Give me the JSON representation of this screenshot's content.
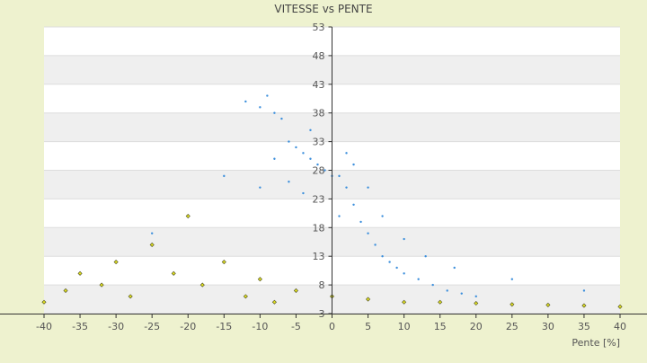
{
  "chart_data": {
    "type": "scatter",
    "title": "VITESSE vs PENTE",
    "xlabel": "Pente [%]",
    "ylabel": "",
    "xlim": [
      -40,
      40
    ],
    "ylim": [
      3,
      53
    ],
    "x_ticks": [
      "-40",
      "-35",
      "-30",
      "-25",
      "-20",
      "-15",
      "-10",
      "-5",
      "0",
      "5",
      "10",
      "15",
      "20",
      "25",
      "30",
      "35",
      "40"
    ],
    "y_ticks": [
      "3",
      "8",
      "13",
      "18",
      "23",
      "28",
      "33",
      "38",
      "43",
      "48",
      "53"
    ],
    "y_tick_values": [
      3,
      8,
      13,
      18,
      23,
      28,
      33,
      38,
      43,
      48,
      53
    ],
    "grid": true,
    "legend": "none",
    "colors": {
      "background": "#eef2cf",
      "plot_band_light": "#ffffff",
      "plot_band_dark": "#efefef",
      "series_blue": "#3c8fdc",
      "series_yellow": "#e0e020",
      "series_yellow_outline": "#4a4a20",
      "text": "#555555",
      "title": "#444444",
      "axis": "#333333"
    },
    "series": [
      {
        "color": "#3c8fdc",
        "marker": "small-dot",
        "points": [
          [
            -12.0,
            40.0
          ],
          [
            -10.0,
            39.0
          ],
          [
            -9.0,
            41.0
          ],
          [
            -8.0,
            38.0
          ],
          [
            -7.0,
            37.0
          ],
          [
            -6.0,
            33.0
          ],
          [
            -5.0,
            32.0
          ],
          [
            -4.0,
            31.0
          ],
          [
            -3.0,
            30.0
          ],
          [
            -2.0,
            29.0
          ],
          [
            -1.0,
            28.0
          ],
          [
            0.0,
            27.0
          ],
          [
            1.0,
            27.0
          ],
          [
            2.0,
            25.0
          ],
          [
            3.0,
            22.0
          ],
          [
            4.0,
            19.0
          ],
          [
            5.0,
            17.0
          ],
          [
            6.0,
            15.0
          ],
          [
            7.0,
            13.0
          ],
          [
            8.0,
            12.0
          ],
          [
            9.0,
            11.0
          ],
          [
            10.0,
            10.0
          ],
          [
            12.0,
            9.0
          ],
          [
            14.0,
            8.0
          ],
          [
            16.0,
            7.0
          ],
          [
            18.0,
            6.5
          ],
          [
            20.0,
            6.0
          ],
          [
            -15.0,
            27.0
          ],
          [
            -20.0,
            20.0
          ],
          [
            -25.0,
            17.0
          ],
          [
            -10.0,
            25.0
          ],
          [
            -8.0,
            30.0
          ],
          [
            -6.0,
            26.0
          ],
          [
            -4.0,
            24.0
          ],
          [
            -3.0,
            35.0
          ],
          [
            1.0,
            20.0
          ],
          [
            2.0,
            31.0
          ],
          [
            3.0,
            29.0
          ],
          [
            5.0,
            25.0
          ],
          [
            7.0,
            20.0
          ],
          [
            10.0,
            16.0
          ],
          [
            13.0,
            13.0
          ],
          [
            17.0,
            11.0
          ],
          [
            25.0,
            9.0
          ],
          [
            35.0,
            7.0
          ]
        ]
      },
      {
        "color": "#e0e020",
        "marker": "small-diamond",
        "points": [
          [
            -40.0,
            5.0
          ],
          [
            -37.0,
            7.0
          ],
          [
            -35.0,
            10.0
          ],
          [
            -32.0,
            8.0
          ],
          [
            -30.0,
            12.0
          ],
          [
            -28.0,
            6.0
          ],
          [
            -25.0,
            15.0
          ],
          [
            -22.0,
            10.0
          ],
          [
            -20.0,
            20.0
          ],
          [
            -18.0,
            8.0
          ],
          [
            -15.0,
            12.0
          ],
          [
            -12.0,
            6.0
          ],
          [
            -10.0,
            9.0
          ],
          [
            -8.0,
            5.0
          ],
          [
            -5.0,
            7.0
          ],
          [
            0.0,
            6.0
          ],
          [
            5.0,
            5.5
          ],
          [
            10.0,
            5.0
          ],
          [
            15.0,
            5.0
          ],
          [
            20.0,
            4.8
          ],
          [
            25.0,
            4.6
          ],
          [
            30.0,
            4.5
          ],
          [
            35.0,
            4.4
          ],
          [
            40.0,
            4.2
          ]
        ]
      }
    ]
  }
}
